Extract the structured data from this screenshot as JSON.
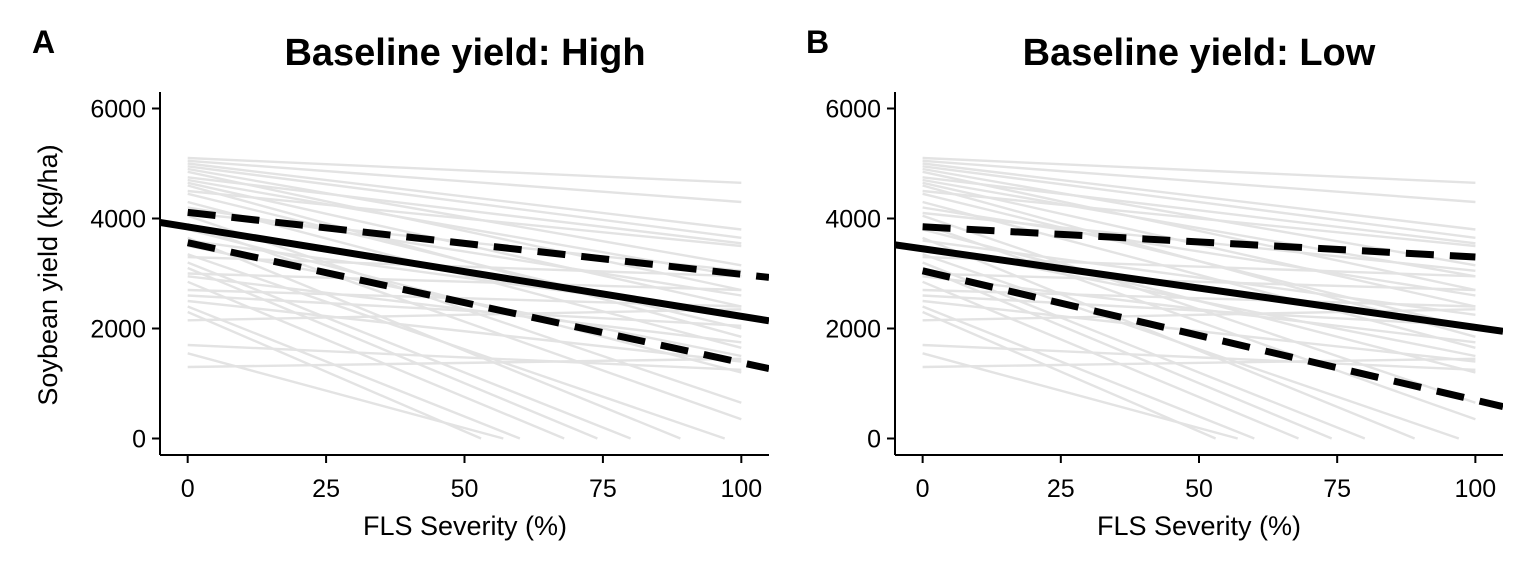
{
  "figure": {
    "ylabel": "Soybean yield (kg/ha)",
    "colors": {
      "background": "#ffffff",
      "individual_lines": "#e3e3e3",
      "fit_line": "#000000"
    }
  },
  "chart_data": [
    {
      "type": "line",
      "panel_label": "A",
      "title": "Baseline yield: High",
      "xlabel": "FLS Severity (%)",
      "ylabel": "Soybean yield (kg/ha)",
      "xlim": [
        -5,
        105
      ],
      "ylim": [
        -300,
        6300
      ],
      "xticks": [
        0,
        25,
        50,
        75,
        100
      ],
      "yticks": [
        0,
        2000,
        4000,
        6000
      ],
      "grid": false,
      "series": [
        {
          "role": "mean",
          "style": "solid",
          "color": "#000000",
          "x": [
            -5,
            105
          ],
          "y": [
            3930,
            2140
          ]
        },
        {
          "role": "upper",
          "style": "dashed",
          "color": "#000000",
          "x": [
            0,
            105
          ],
          "y": [
            4110,
            2930
          ]
        },
        {
          "role": "lower",
          "style": "dashed",
          "color": "#000000",
          "x": [
            0,
            105
          ],
          "y": [
            3560,
            1270
          ]
        }
      ],
      "background_series": [
        {
          "x": [
            0,
            100
          ],
          "y": [
            5100,
            4650
          ]
        },
        {
          "x": [
            0,
            100
          ],
          "y": [
            5050,
            4300
          ]
        },
        {
          "x": [
            0,
            100
          ],
          "y": [
            5000,
            3800
          ]
        },
        {
          "x": [
            0,
            100
          ],
          "y": [
            4950,
            3650
          ]
        },
        {
          "x": [
            0,
            100
          ],
          "y": [
            4900,
            3150
          ]
        },
        {
          "x": [
            0,
            100
          ],
          "y": [
            4850,
            2700
          ]
        },
        {
          "x": [
            0,
            100
          ],
          "y": [
            4750,
            3550
          ]
        },
        {
          "x": [
            0,
            100
          ],
          "y": [
            4700,
            2950
          ]
        },
        {
          "x": [
            0,
            100
          ],
          "y": [
            4650,
            2400
          ]
        },
        {
          "x": [
            0,
            100
          ],
          "y": [
            4600,
            1850
          ]
        },
        {
          "x": [
            0,
            100
          ],
          "y": [
            4500,
            3500
          ]
        },
        {
          "x": [
            0,
            100
          ],
          "y": [
            4450,
            2000
          ]
        },
        {
          "x": [
            0,
            100
          ],
          "y": [
            4300,
            1650
          ]
        },
        {
          "x": [
            0,
            100
          ],
          "y": [
            4200,
            2600
          ]
        },
        {
          "x": [
            0,
            100
          ],
          "y": [
            4100,
            3050
          ]
        },
        {
          "x": [
            0,
            100
          ],
          "y": [
            4050,
            650
          ]
        },
        {
          "x": [
            0,
            100
          ],
          "y": [
            3900,
            350
          ]
        },
        {
          "x": [
            0,
            100
          ],
          "y": [
            3800,
            1200
          ]
        },
        {
          "x": [
            0,
            89
          ],
          "y": [
            3650,
            0
          ]
        },
        {
          "x": [
            0,
            100
          ],
          "y": [
            3600,
            2250
          ]
        },
        {
          "x": [
            0,
            100
          ],
          "y": [
            3500,
            1500
          ]
        },
        {
          "x": [
            0,
            97
          ],
          "y": [
            3350,
            0
          ]
        },
        {
          "x": [
            0,
            100
          ],
          "y": [
            3300,
            2950
          ]
        },
        {
          "x": [
            0,
            80
          ],
          "y": [
            3200,
            0
          ]
        },
        {
          "x": [
            0,
            74
          ],
          "y": [
            3100,
            0
          ]
        },
        {
          "x": [
            0,
            100
          ],
          "y": [
            3000,
            2700
          ]
        },
        {
          "x": [
            0,
            100
          ],
          "y": [
            2950,
            1750
          ]
        },
        {
          "x": [
            0,
            68
          ],
          "y": [
            2850,
            0
          ]
        },
        {
          "x": [
            0,
            100
          ],
          "y": [
            2700,
            2400
          ]
        },
        {
          "x": [
            0,
            100
          ],
          "y": [
            2600,
            2050
          ]
        },
        {
          "x": [
            0,
            100
          ],
          "y": [
            2500,
            1400
          ]
        },
        {
          "x": [
            0,
            60
          ],
          "y": [
            2400,
            0
          ]
        },
        {
          "x": [
            0,
            53
          ],
          "y": [
            2300,
            0
          ]
        },
        {
          "x": [
            0,
            100
          ],
          "y": [
            2150,
            2350
          ]
        },
        {
          "x": [
            0,
            100
          ],
          "y": [
            1700,
            1250
          ]
        },
        {
          "x": [
            0,
            57
          ],
          "y": [
            1550,
            0
          ]
        },
        {
          "x": [
            0,
            100
          ],
          "y": [
            1300,
            1450
          ]
        }
      ]
    },
    {
      "type": "line",
      "panel_label": "B",
      "title": "Baseline yield: Low",
      "xlabel": "FLS Severity (%)",
      "ylabel": "",
      "xlim": [
        -5,
        105
      ],
      "ylim": [
        -300,
        6300
      ],
      "xticks": [
        0,
        25,
        50,
        75,
        100
      ],
      "yticks": [
        0,
        2000,
        4000,
        6000
      ],
      "grid": false,
      "series": [
        {
          "role": "mean",
          "style": "solid",
          "color": "#000000",
          "x": [
            -5,
            105
          ],
          "y": [
            3520,
            1950
          ]
        },
        {
          "role": "upper",
          "style": "dashed",
          "color": "#000000",
          "x": [
            0,
            100
          ],
          "y": [
            3850,
            3300
          ]
        },
        {
          "role": "lower",
          "style": "dashed",
          "color": "#000000",
          "x": [
            0,
            105
          ],
          "y": [
            3050,
            580
          ]
        }
      ],
      "background_series": [
        {
          "x": [
            0,
            100
          ],
          "y": [
            5100,
            4650
          ]
        },
        {
          "x": [
            0,
            100
          ],
          "y": [
            5050,
            4300
          ]
        },
        {
          "x": [
            0,
            100
          ],
          "y": [
            5000,
            3800
          ]
        },
        {
          "x": [
            0,
            100
          ],
          "y": [
            4950,
            3650
          ]
        },
        {
          "x": [
            0,
            100
          ],
          "y": [
            4900,
            3150
          ]
        },
        {
          "x": [
            0,
            100
          ],
          "y": [
            4850,
            2700
          ]
        },
        {
          "x": [
            0,
            100
          ],
          "y": [
            4750,
            3550
          ]
        },
        {
          "x": [
            0,
            100
          ],
          "y": [
            4700,
            2950
          ]
        },
        {
          "x": [
            0,
            100
          ],
          "y": [
            4650,
            2400
          ]
        },
        {
          "x": [
            0,
            100
          ],
          "y": [
            4600,
            1850
          ]
        },
        {
          "x": [
            0,
            100
          ],
          "y": [
            4500,
            3500
          ]
        },
        {
          "x": [
            0,
            100
          ],
          "y": [
            4450,
            2000
          ]
        },
        {
          "x": [
            0,
            100
          ],
          "y": [
            4300,
            1650
          ]
        },
        {
          "x": [
            0,
            100
          ],
          "y": [
            4200,
            2600
          ]
        },
        {
          "x": [
            0,
            100
          ],
          "y": [
            4100,
            3050
          ]
        },
        {
          "x": [
            0,
            100
          ],
          "y": [
            4050,
            650
          ]
        },
        {
          "x": [
            0,
            100
          ],
          "y": [
            3900,
            350
          ]
        },
        {
          "x": [
            0,
            100
          ],
          "y": [
            3800,
            1200
          ]
        },
        {
          "x": [
            0,
            89
          ],
          "y": [
            3650,
            0
          ]
        },
        {
          "x": [
            0,
            100
          ],
          "y": [
            3600,
            2250
          ]
        },
        {
          "x": [
            0,
            100
          ],
          "y": [
            3500,
            1500
          ]
        },
        {
          "x": [
            0,
            97
          ],
          "y": [
            3350,
            0
          ]
        },
        {
          "x": [
            0,
            100
          ],
          "y": [
            3300,
            2950
          ]
        },
        {
          "x": [
            0,
            80
          ],
          "y": [
            3200,
            0
          ]
        },
        {
          "x": [
            0,
            74
          ],
          "y": [
            3100,
            0
          ]
        },
        {
          "x": [
            0,
            100
          ],
          "y": [
            3000,
            2700
          ]
        },
        {
          "x": [
            0,
            100
          ],
          "y": [
            2950,
            1750
          ]
        },
        {
          "x": [
            0,
            68
          ],
          "y": [
            2850,
            0
          ]
        },
        {
          "x": [
            0,
            100
          ],
          "y": [
            2700,
            2400
          ]
        },
        {
          "x": [
            0,
            100
          ],
          "y": [
            2600,
            2050
          ]
        },
        {
          "x": [
            0,
            100
          ],
          "y": [
            2500,
            1400
          ]
        },
        {
          "x": [
            0,
            60
          ],
          "y": [
            2400,
            0
          ]
        },
        {
          "x": [
            0,
            53
          ],
          "y": [
            2300,
            0
          ]
        },
        {
          "x": [
            0,
            100
          ],
          "y": [
            2150,
            2350
          ]
        },
        {
          "x": [
            0,
            100
          ],
          "y": [
            1700,
            1250
          ]
        },
        {
          "x": [
            0,
            57
          ],
          "y": [
            1550,
            0
          ]
        },
        {
          "x": [
            0,
            100
          ],
          "y": [
            1300,
            1450
          ]
        }
      ]
    }
  ]
}
